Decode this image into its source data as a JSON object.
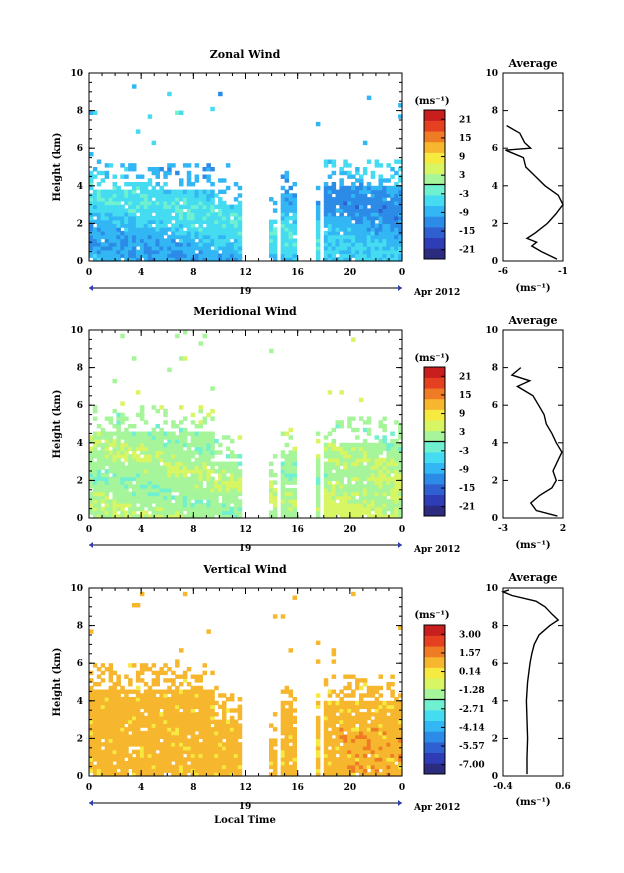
{
  "figure": {
    "date_label": "Apr 2012",
    "day_label": "19",
    "xlabel": "Local Time",
    "ylabel": "Height (km)",
    "avg_title": "Average",
    "unit_label": "(ms⁻¹)",
    "x_ticks": [
      "0",
      "4",
      "8",
      "12",
      "16",
      "20",
      "0"
    ],
    "y_ticks": [
      "0",
      "2",
      "4",
      "6",
      "8",
      "10"
    ]
  },
  "colors": [
    "#2b2c7f",
    "#2e3cb5",
    "#2f5fd1",
    "#2c8be6",
    "#33b6f4",
    "#45dbf0",
    "#6ff0d0",
    "#a6f59a",
    "#d8f563",
    "#f6e93f",
    "#f6b72f",
    "#ef7c25",
    "#e5401f",
    "#c81e1e"
  ],
  "chart_data": [
    {
      "type": "heatmap",
      "title": "Zonal Wind",
      "xlabel": "",
      "ylabel": "Height (km)",
      "xlim": [
        0,
        24
      ],
      "ylim": [
        0,
        10
      ],
      "colorbar_ticks": [
        "21",
        "15",
        "9",
        "3",
        "-3",
        "-9",
        "-15",
        "-21"
      ],
      "colorbar_range": [
        -24,
        24
      ],
      "average_ticks": [
        "-6",
        "-1"
      ],
      "average_xlim": [
        -6,
        -1
      ],
      "average_profile": {
        "height": [
          0.1,
          0.5,
          0.8,
          1.0,
          1.2,
          1.5,
          2.0,
          2.5,
          3.0,
          3.5,
          4.0,
          4.5,
          5.0,
          5.5,
          5.9,
          6.0,
          6.3,
          6.8,
          7.2
        ],
        "value": [
          -1.5,
          -2.8,
          -3.6,
          -3.2,
          -4.0,
          -3.3,
          -2.3,
          -1.6,
          -1.0,
          -1.4,
          -2.5,
          -3.3,
          -4.1,
          -4.3,
          -5.8,
          -3.7,
          -4.2,
          -4.6,
          -5.7
        ]
      }
    },
    {
      "type": "heatmap",
      "title": "Meridional Wind",
      "xlabel": "",
      "ylabel": "Height (km)",
      "xlim": [
        0,
        24
      ],
      "ylim": [
        0,
        10
      ],
      "colorbar_ticks": [
        "21",
        "15",
        "9",
        "3",
        "-3",
        "-9",
        "-15",
        "-21"
      ],
      "colorbar_range": [
        -24,
        24
      ],
      "average_ticks": [
        "-3",
        "2"
      ],
      "average_xlim": [
        -3,
        2.4
      ],
      "average_profile": {
        "height": [
          0.1,
          0.4,
          0.8,
          1.2,
          1.6,
          2.0,
          2.5,
          3.0,
          3.5,
          4.0,
          4.5,
          5.0,
          5.5,
          6.0,
          6.5,
          7.0,
          7.3,
          7.6,
          8.0
        ],
        "value": [
          1.9,
          0.0,
          -0.5,
          0.3,
          1.4,
          1.8,
          1.5,
          1.9,
          2.3,
          1.8,
          1.4,
          0.9,
          0.7,
          0.2,
          -0.3,
          -1.7,
          -0.6,
          -2.2,
          -1.4
        ]
      }
    },
    {
      "type": "heatmap",
      "title": "Vertical Wind",
      "xlabel": "Local Time",
      "ylabel": "Height (km)",
      "xlim": [
        0,
        24
      ],
      "ylim": [
        0,
        10
      ],
      "colorbar_ticks": [
        "3.00",
        "1.57",
        "0.14",
        "-1.28",
        "-2.71",
        "-4.14",
        "-5.57",
        "-7.00"
      ],
      "colorbar_range": [
        -7.7,
        3.7
      ],
      "average_ticks": [
        "-0.4",
        "0.6"
      ],
      "average_xlim": [
        -0.4,
        0.6
      ],
      "average_profile": {
        "height": [
          0.1,
          1.0,
          2.0,
          3.0,
          4.0,
          5.0,
          6.0,
          6.5,
          7.0,
          7.5,
          8.0,
          8.3,
          8.6,
          9.0,
          9.3,
          9.6,
          9.8,
          9.9
        ],
        "value": [
          0.0,
          0.0,
          0.01,
          0.0,
          -0.01,
          0.01,
          0.05,
          0.08,
          0.12,
          0.2,
          0.38,
          0.52,
          0.42,
          0.3,
          0.15,
          -0.25,
          -0.4,
          -0.3
        ]
      }
    }
  ]
}
